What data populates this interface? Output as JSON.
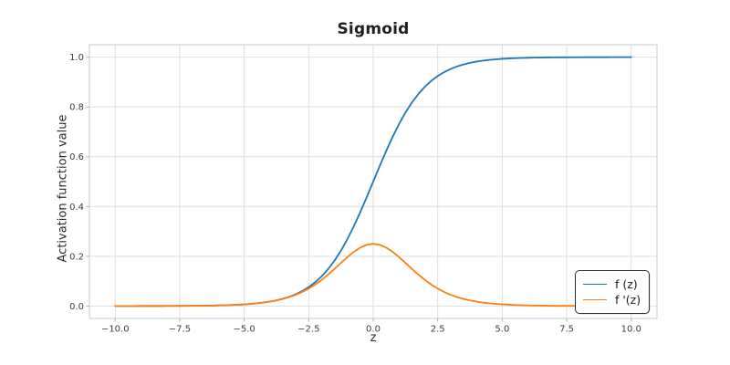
{
  "figure": {
    "background": "#ffffff"
  },
  "styles": {
    "grid_color": "#dedede",
    "spine_color": "#d2d2d2",
    "tick_mark_color": "#b0b0b0",
    "tick_label_color": "#3c3c3c",
    "title_color": "#1f1f1f",
    "legend_border_color": "#2e2e2e"
  },
  "chart_data": {
    "type": "line",
    "title": "Sigmoid",
    "xlabel": "z",
    "ylabel": "Activation function value",
    "xlim": [
      -11,
      11
    ],
    "ylim": [
      -0.05,
      1.05
    ],
    "grid": true,
    "legend_position": "lower right",
    "xticks": [
      -10.0,
      -7.5,
      -5.0,
      -2.5,
      0.0,
      2.5,
      5.0,
      7.5,
      10.0
    ],
    "xtick_labels": [
      "−10.0",
      "−7.5",
      "−5.0",
      "−2.5",
      "0.0",
      "2.5",
      "5.0",
      "7.5",
      "10.0"
    ],
    "yticks": [
      0.0,
      0.2,
      0.4,
      0.6,
      0.8,
      1.0
    ],
    "ytick_labels": [
      "0.0",
      "0.2",
      "0.4",
      "0.6",
      "0.8",
      "1.0"
    ],
    "x": [
      -10,
      -9.75,
      -9.5,
      -9.25,
      -9,
      -8.75,
      -8.5,
      -8.25,
      -8,
      -7.75,
      -7.5,
      -7.25,
      -7,
      -6.75,
      -6.5,
      -6.25,
      -6,
      -5.75,
      -5.5,
      -5.25,
      -5,
      -4.75,
      -4.5,
      -4.25,
      -4,
      -3.75,
      -3.5,
      -3.25,
      -3,
      -2.75,
      -2.5,
      -2.25,
      -2,
      -1.75,
      -1.5,
      -1.25,
      -1,
      -0.75,
      -0.5,
      -0.25,
      0,
      0.25,
      0.5,
      0.75,
      1,
      1.25,
      1.5,
      1.75,
      2,
      2.25,
      2.5,
      2.75,
      3,
      3.25,
      3.5,
      3.75,
      4,
      4.25,
      4.5,
      4.75,
      5,
      5.25,
      5.5,
      5.75,
      6,
      6.25,
      6.5,
      6.75,
      7,
      7.25,
      7.5,
      7.75,
      8,
      8.25,
      8.5,
      8.75,
      9,
      9.25,
      9.5,
      9.75,
      10
    ],
    "series": [
      {
        "name": "f (z)",
        "color": "#1f77b4",
        "values": [
          5e-05,
          6e-05,
          7e-05,
          0.0001,
          0.00012,
          0.00016,
          0.0002,
          0.00026,
          0.00034,
          0.00043,
          0.00055,
          0.00071,
          0.00091,
          0.00117,
          0.0015,
          0.00192,
          0.00247,
          0.00317,
          0.00407,
          0.00522,
          0.00669,
          0.00858,
          0.01099,
          0.01406,
          0.01799,
          0.02298,
          0.02931,
          0.03733,
          0.04743,
          0.06009,
          0.07586,
          0.09535,
          0.1192,
          0.14805,
          0.18243,
          0.2227,
          0.26894,
          0.32082,
          0.37754,
          0.43782,
          0.5,
          0.56218,
          0.62246,
          0.67918,
          0.73106,
          0.7773,
          0.81757,
          0.85195,
          0.8808,
          0.90465,
          0.92414,
          0.93991,
          0.95257,
          0.96267,
          0.97069,
          0.97702,
          0.98201,
          0.98594,
          0.98901,
          0.99142,
          0.99331,
          0.99478,
          0.99593,
          0.99683,
          0.99753,
          0.99808,
          0.9985,
          0.99883,
          0.99909,
          0.99929,
          0.99945,
          0.99957,
          0.99966,
          0.99974,
          0.9998,
          0.99984,
          0.99988,
          0.9999,
          0.99993,
          0.99994,
          0.99995
        ]
      },
      {
        "name": "f '(z)",
        "color": "#ff7f0e",
        "values": [
          5e-05,
          6e-05,
          7e-05,
          0.0001,
          0.00012,
          0.00016,
          0.0002,
          0.00026,
          0.00034,
          0.00043,
          0.00055,
          0.00071,
          0.00091,
          0.00117,
          0.0015,
          0.00192,
          0.00247,
          0.00317,
          0.00407,
          0.0052,
          0.00665,
          0.00851,
          0.01087,
          0.01386,
          0.01767,
          0.02245,
          0.02845,
          0.03594,
          0.04518,
          0.05648,
          0.0701,
          0.08626,
          0.10499,
          0.12613,
          0.14915,
          0.1731,
          0.19661,
          0.2179,
          0.235,
          0.24613,
          0.25,
          0.24613,
          0.235,
          0.2179,
          0.19661,
          0.1731,
          0.14915,
          0.12613,
          0.10499,
          0.08626,
          0.0701,
          0.05648,
          0.04518,
          0.03594,
          0.02845,
          0.02245,
          0.01767,
          0.01386,
          0.01087,
          0.00851,
          0.00665,
          0.0052,
          0.00407,
          0.00317,
          0.00247,
          0.00192,
          0.0015,
          0.00117,
          0.00091,
          0.00071,
          0.00055,
          0.00043,
          0.00034,
          0.00026,
          0.0002,
          0.00016,
          0.00012,
          0.0001,
          7e-05,
          6e-05,
          5e-05
        ]
      }
    ]
  }
}
